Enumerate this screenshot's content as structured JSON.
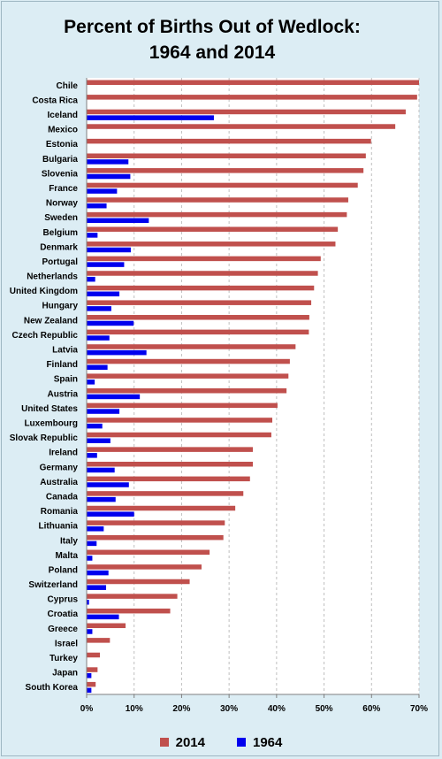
{
  "chart_data": {
    "type": "bar",
    "orientation": "horizontal",
    "title": "Percent of Births Out of Wedlock:",
    "subtitle": "1964 and 2014",
    "xlim": [
      0,
      70
    ],
    "x_ticks": [
      "0%",
      "10%",
      "20%",
      "30%",
      "40%",
      "50%",
      "60%",
      "70%"
    ],
    "x_tick_values": [
      0,
      10,
      20,
      30,
      40,
      50,
      60,
      70
    ],
    "grid": "vertical dashed",
    "legend_position": "bottom",
    "categories": [
      "Chile",
      "Costa Rica",
      "Iceland",
      "Mexico",
      "Estonia",
      "Bulgaria",
      "Slovenia",
      "France",
      "Norway",
      "Sweden",
      "Belgium",
      "Denmark",
      "Portugal",
      "Netherlands",
      "United Kingdom",
      "Hungary",
      "New Zealand",
      "Czech Republic",
      "Latvia",
      "Finland",
      "Spain",
      "Austria",
      "United States",
      "Luxembourg",
      "Slovak Republic",
      "Ireland",
      "Germany",
      "Australia",
      "Canada",
      "Romania",
      "Lithuania",
      "Italy",
      "Malta",
      "Poland",
      "Switzerland",
      "Cyprus",
      "Croatia",
      "Greece",
      "Israel",
      "Turkey",
      "Japan",
      "South Korea"
    ],
    "series": [
      {
        "name": "2014",
        "color": "#c0504d",
        "values": [
          71.2,
          69.6,
          67.2,
          65.0,
          59.9,
          58.8,
          58.3,
          57.1,
          55.1,
          54.8,
          52.9,
          52.4,
          49.3,
          48.7,
          47.9,
          47.3,
          46.9,
          46.8,
          44.0,
          42.8,
          42.5,
          42.1,
          40.2,
          39.1,
          38.9,
          35.0,
          35.0,
          34.4,
          33.0,
          31.3,
          29.1,
          28.8,
          25.9,
          24.2,
          21.7,
          19.1,
          17.6,
          8.2,
          4.9,
          2.8,
          2.3,
          1.9
        ]
      },
      {
        "name": "1964",
        "color": "#0000ee",
        "values": [
          0,
          0,
          26.8,
          0,
          0,
          8.8,
          9.2,
          6.4,
          4.2,
          13.1,
          2.3,
          9.3,
          7.9,
          1.8,
          6.9,
          5.2,
          9.9,
          4.8,
          12.6,
          4.4,
          1.7,
          11.2,
          6.9,
          3.3,
          5.0,
          2.2,
          5.9,
          8.9,
          6.1,
          10.0,
          3.6,
          2.1,
          1.2,
          4.6,
          4.1,
          0.5,
          6.8,
          1.2,
          0,
          0,
          1.0,
          1.0
        ]
      }
    ]
  },
  "legend": {
    "item_2014": "2014",
    "item_1964": "1964"
  }
}
